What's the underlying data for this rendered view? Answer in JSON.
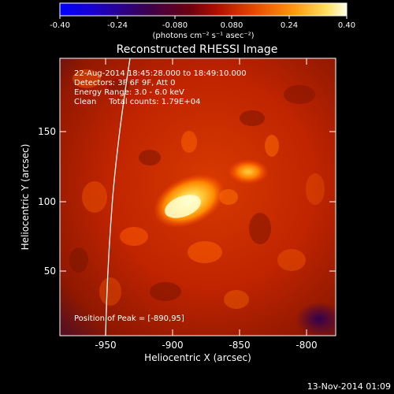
{
  "colorbar": {
    "tick_labels": [
      "-0.40",
      "-0.24",
      "-0.080",
      "0.080",
      "0.24",
      "0.40"
    ],
    "unit_label": "(photons cm⁻² s⁻¹ asec⁻²)"
  },
  "title": "Reconstructed RHESSI Image",
  "info": {
    "line1": "22-Aug-2014 18:45:28.000 to 18:49:10.000",
    "line2": "Detectors: 3F 6F 9F, Att 0",
    "line3": "Energy Range: 3.0 - 6.0 keV",
    "line4": "Clean     Total counts: 1.79E+04"
  },
  "peak_text": "Position of Peak = [-890,95]",
  "axes": {
    "xlabel": "Heliocentric X (arcsec)",
    "ylabel": "Heliocentric Y (arcsec)",
    "x_ticks": [
      "-950",
      "-900",
      "-850",
      "-800"
    ],
    "y_ticks": [
      "150",
      "100",
      "50"
    ]
  },
  "footer": "13-Nov-2014 01:09"
}
